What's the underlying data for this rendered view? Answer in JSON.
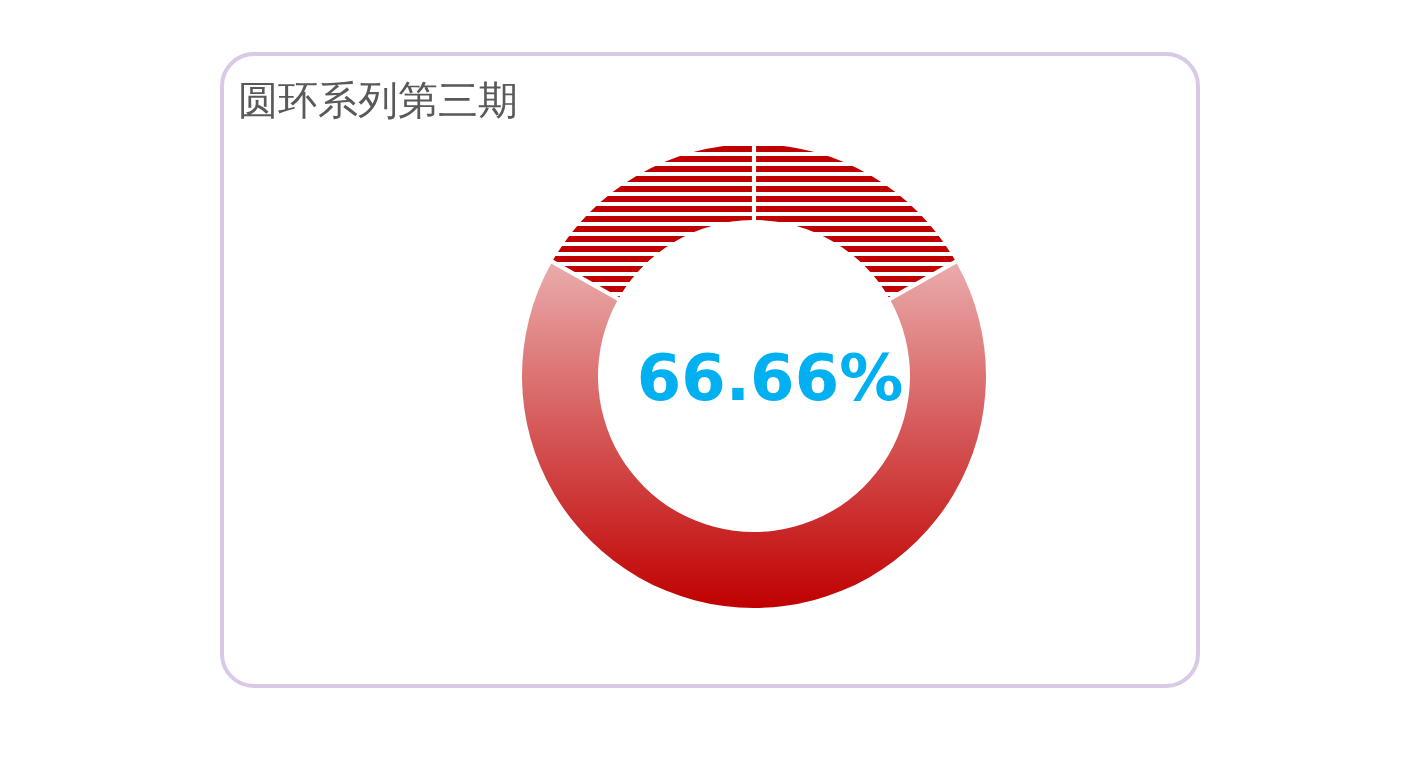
{
  "chart_data": {
    "type": "donut",
    "title": "圆环系列第三期",
    "categories": [
      null,
      null,
      null
    ],
    "values": [
      16.67,
      66.66,
      16.67
    ],
    "colors": [
      "#c00000",
      "#c00000",
      "#c00000"
    ],
    "annotations": [
      "66.66%"
    ]
  }
}
